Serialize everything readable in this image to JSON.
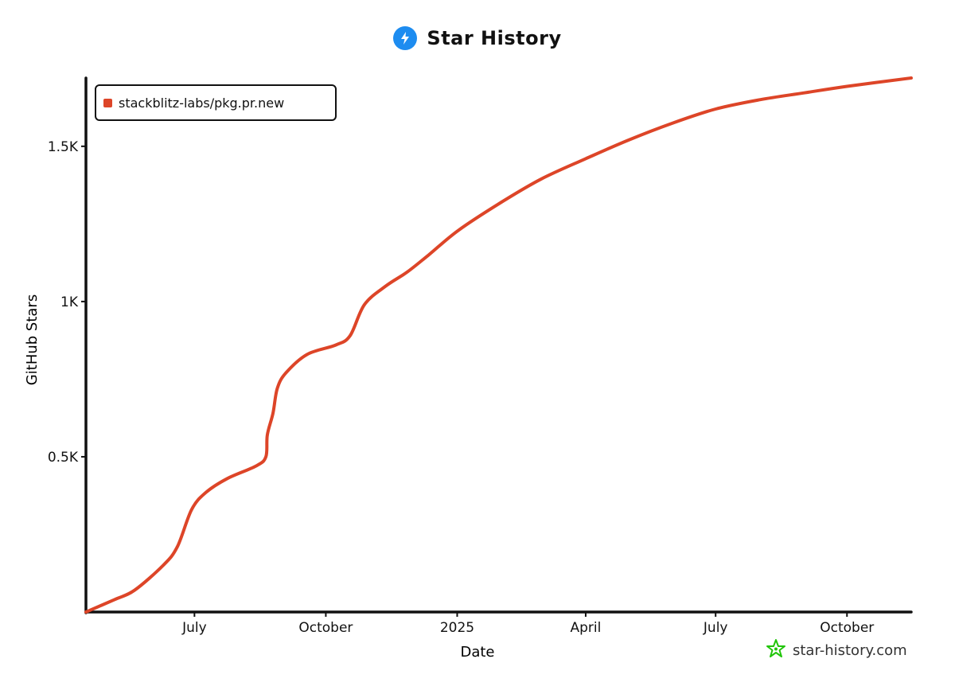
{
  "header": {
    "title": "Star History",
    "logo_icon": "lightning-bolt-icon"
  },
  "watermark": {
    "text": "star-history.com",
    "icon": "star-outline-icon",
    "color": "#22c50a"
  },
  "chart_data": {
    "type": "line",
    "title": "Star History",
    "xlabel": "Date",
    "ylabel": "GitHub Stars",
    "xlim": [
      "2024-04-16",
      "2025-11-15"
    ],
    "ylim": [
      0,
      1720
    ],
    "x_ticks": [
      {
        "date": "2024-07-01",
        "label": "July"
      },
      {
        "date": "2024-10-01",
        "label": "October"
      },
      {
        "date": "2025-01-01",
        "label": "2025"
      },
      {
        "date": "2025-04-01",
        "label": "April"
      },
      {
        "date": "2025-07-01",
        "label": "July"
      },
      {
        "date": "2025-10-01",
        "label": "October"
      }
    ],
    "y_ticks": [
      {
        "value": 500,
        "label": "0.5K"
      },
      {
        "value": 1000,
        "label": "1K"
      },
      {
        "value": 1500,
        "label": "1.5K"
      }
    ],
    "legend_position": "top-left",
    "grid": false,
    "series": [
      {
        "name": "stackblitz-labs/pkg.pr.new",
        "color": "#dd4528",
        "points": [
          [
            "2024-04-16",
            0
          ],
          [
            "2024-05-06",
            40
          ],
          [
            "2024-05-20",
            70
          ],
          [
            "2024-06-09",
            150
          ],
          [
            "2024-06-19",
            210
          ],
          [
            "2024-06-29",
            330
          ],
          [
            "2024-07-09",
            385
          ],
          [
            "2024-07-24",
            430
          ],
          [
            "2024-08-13",
            470
          ],
          [
            "2024-08-20",
            500
          ],
          [
            "2024-08-21",
            570
          ],
          [
            "2024-08-25",
            640
          ],
          [
            "2024-08-28",
            720
          ],
          [
            "2024-09-03",
            770
          ],
          [
            "2024-09-18",
            830
          ],
          [
            "2024-10-08",
            860
          ],
          [
            "2024-10-18",
            890
          ],
          [
            "2024-10-28",
            990
          ],
          [
            "2024-11-12",
            1050
          ],
          [
            "2024-11-27",
            1095
          ],
          [
            "2024-12-12",
            1150
          ],
          [
            "2025-01-02",
            1230
          ],
          [
            "2025-02-01",
            1320
          ],
          [
            "2025-03-01",
            1395
          ],
          [
            "2025-04-01",
            1460
          ],
          [
            "2025-05-01",
            1520
          ],
          [
            "2025-06-01",
            1575
          ],
          [
            "2025-07-01",
            1620
          ],
          [
            "2025-08-01",
            1650
          ],
          [
            "2025-09-01",
            1672
          ],
          [
            "2025-10-01",
            1693
          ],
          [
            "2025-11-15",
            1720
          ]
        ]
      }
    ]
  }
}
